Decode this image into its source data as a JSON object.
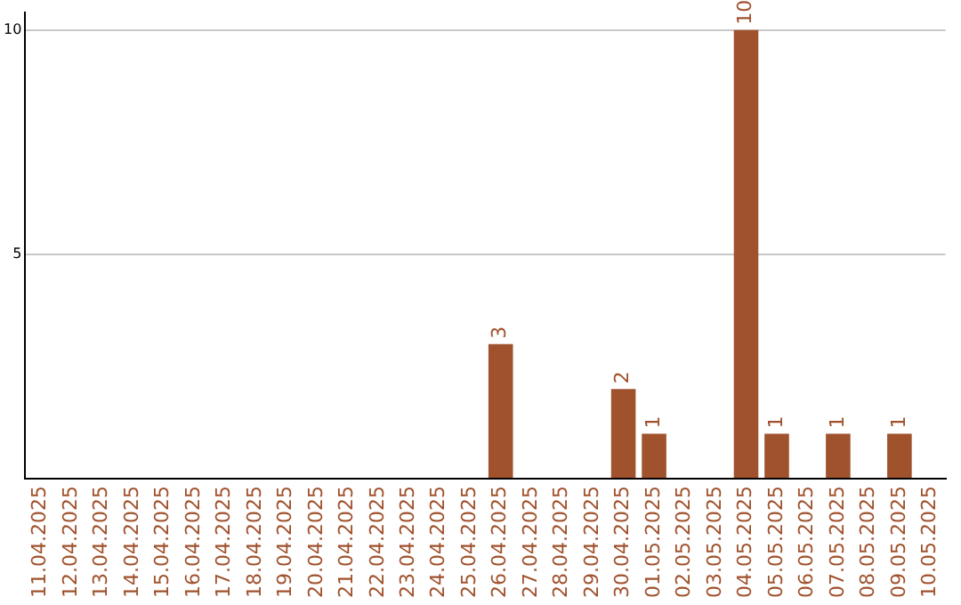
{
  "chart_data": {
    "type": "bar",
    "categories": [
      "11.04.2025",
      "12.04.2025",
      "13.04.2025",
      "14.04.2025",
      "15.04.2025",
      "16.04.2025",
      "17.04.2025",
      "18.04.2025",
      "19.04.2025",
      "20.04.2025",
      "21.04.2025",
      "22.04.2025",
      "23.04.2025",
      "24.04.2025",
      "25.04.2025",
      "26.04.2025",
      "27.04.2025",
      "28.04.2025",
      "29.04.2025",
      "30.04.2025",
      "01.05.2025",
      "02.05.2025",
      "03.05.2025",
      "04.05.2025",
      "05.05.2025",
      "06.05.2025",
      "07.05.2025",
      "08.05.2025",
      "09.05.2025",
      "10.05.2025"
    ],
    "values": [
      0,
      0,
      0,
      0,
      0,
      0,
      0,
      0,
      0,
      0,
      0,
      0,
      0,
      0,
      0,
      3,
      0,
      0,
      0,
      2,
      1,
      0,
      0,
      10,
      1,
      0,
      1,
      0,
      1,
      0
    ],
    "value_labels": [
      null,
      null,
      null,
      null,
      null,
      null,
      null,
      null,
      null,
      null,
      null,
      null,
      null,
      null,
      null,
      "3",
      null,
      null,
      null,
      "2",
      "1",
      null,
      null,
      "10",
      "1",
      null,
      "1",
      null,
      "1",
      null
    ],
    "color": "#a0522d",
    "ylim": [
      0,
      10.4
    ],
    "yticks": [
      {
        "value": 0,
        "label": null
      },
      5,
      10
    ],
    "grid": "y"
  }
}
